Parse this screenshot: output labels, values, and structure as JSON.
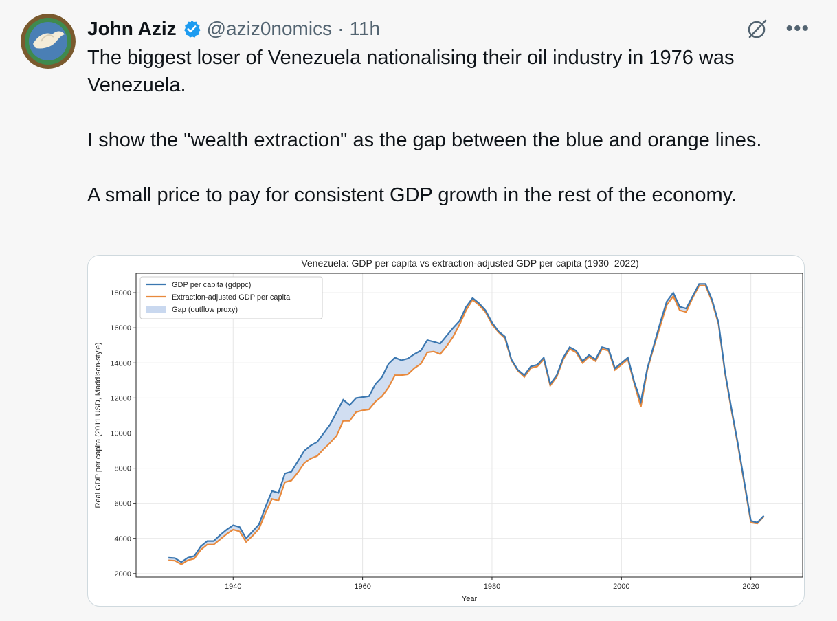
{
  "tweet": {
    "author": {
      "name": "John Aziz",
      "handle": "@aziz0nomics",
      "time": "11h",
      "separator": "·"
    },
    "icons": {
      "avatar": "dove-avatar",
      "verified": "verified-badge-icon",
      "grok": "grok-icon",
      "more": "more-options-icon"
    },
    "text": "The biggest loser of Venezuela nationalising their oil industry in 1976 was Venezuela.\n\nI show the \"wealth extraction\" as the gap between the blue and orange lines.\n\nA small price to pay for consistent GDP growth in the rest of the economy."
  },
  "colors": {
    "blue": "#3b77b0",
    "orange": "#e8893c",
    "fill": "#c9d8ef",
    "verified": "#1d9bf0"
  },
  "chart_data": {
    "type": "line",
    "title": "Venezuela: GDP per capita vs extraction-adjusted GDP per capita (1930–2022)",
    "xlabel": "Year",
    "ylabel": "Real GDP per capita (2011 USD, Maddison-style)",
    "xlim": [
      1925,
      2028
    ],
    "ylim": [
      1800,
      19100
    ],
    "xticks": [
      1940,
      1960,
      1980,
      2000,
      2020
    ],
    "yticks": [
      2000,
      4000,
      6000,
      8000,
      10000,
      12000,
      14000,
      16000,
      18000
    ],
    "grid": true,
    "legend_position": "top-left",
    "legend": [
      "GDP per capita (gdppc)",
      "Extraction-adjusted GDP per capita",
      "Gap (outflow proxy)"
    ],
    "x": [
      1930,
      1931,
      1932,
      1933,
      1934,
      1935,
      1936,
      1937,
      1938,
      1939,
      1940,
      1941,
      1942,
      1943,
      1944,
      1945,
      1946,
      1947,
      1948,
      1949,
      1950,
      1951,
      1952,
      1953,
      1954,
      1955,
      1956,
      1957,
      1958,
      1959,
      1960,
      1961,
      1962,
      1963,
      1964,
      1965,
      1966,
      1967,
      1968,
      1969,
      1970,
      1971,
      1972,
      1973,
      1974,
      1975,
      1976,
      1977,
      1978,
      1979,
      1980,
      1981,
      1982,
      1983,
      1984,
      1985,
      1986,
      1987,
      1988,
      1989,
      1990,
      1991,
      1992,
      1993,
      1994,
      1995,
      1996,
      1997,
      1998,
      1999,
      2000,
      2001,
      2002,
      2003,
      2004,
      2005,
      2006,
      2007,
      2008,
      2009,
      2010,
      2011,
      2012,
      2013,
      2014,
      2015,
      2016,
      2017,
      2018,
      2019,
      2020,
      2021,
      2022
    ],
    "series": [
      {
        "name": "GDP per capita (gdppc)",
        "values": [
          2900,
          2880,
          2650,
          2900,
          3000,
          3550,
          3850,
          3850,
          4200,
          4500,
          4750,
          4650,
          4000,
          4400,
          4800,
          5800,
          6700,
          6600,
          7700,
          7800,
          8400,
          9000,
          9300,
          9500,
          10000,
          10500,
          11200,
          11900,
          11600,
          12000,
          12050,
          12100,
          12800,
          13200,
          13950,
          14300,
          14150,
          14250,
          14500,
          14700,
          15300,
          15200,
          15100,
          15550,
          16000,
          16400,
          17200,
          17700,
          17400,
          17000,
          16300,
          15800,
          15500,
          14200,
          13600,
          13300,
          13800,
          13900,
          14300,
          12800,
          13300,
          14300,
          14900,
          14700,
          14100,
          14450,
          14200,
          14900,
          14800,
          13700,
          14000,
          14300,
          12900,
          11800,
          13700,
          15000,
          16300,
          17500,
          18000,
          17200,
          17100,
          17800,
          18500,
          18500,
          17600,
          16300,
          13500,
          11400,
          9400,
          7200,
          5000,
          4900,
          5300
        ]
      },
      {
        "name": "Extraction-adjusted GDP per capita",
        "values": [
          2750,
          2730,
          2520,
          2750,
          2850,
          3350,
          3650,
          3650,
          3950,
          4250,
          4500,
          4400,
          3800,
          4150,
          4550,
          5450,
          6250,
          6150,
          7200,
          7300,
          7750,
          8300,
          8550,
          8700,
          9100,
          9450,
          9850,
          10700,
          10700,
          11200,
          11300,
          11350,
          11800,
          12100,
          12600,
          13300,
          13300,
          13350,
          13700,
          13950,
          14600,
          14650,
          14500,
          14950,
          15500,
          16200,
          17000,
          17600,
          17300,
          16900,
          16200,
          15750,
          15400,
          14150,
          13550,
          13200,
          13700,
          13800,
          14200,
          12700,
          13200,
          14200,
          14800,
          14600,
          14000,
          14350,
          14100,
          14800,
          14700,
          13600,
          13900,
          14200,
          12800,
          11500,
          13600,
          14900,
          16100,
          17300,
          17800,
          17000,
          16900,
          17700,
          18400,
          18400,
          17500,
          16200,
          13400,
          11300,
          9300,
          7100,
          4900,
          4850,
          5250
        ]
      }
    ]
  }
}
